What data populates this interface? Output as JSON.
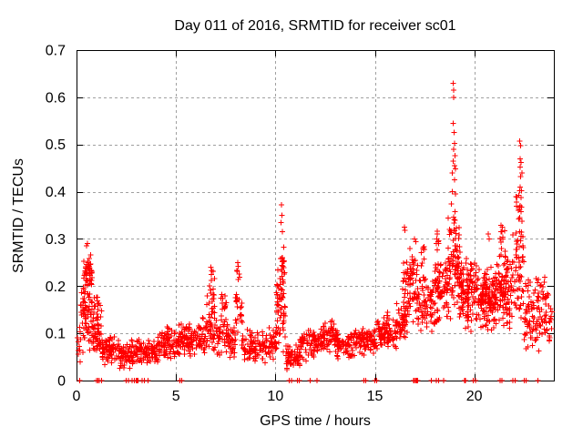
{
  "window": {
    "background": "#ffffff"
  },
  "chart_data": {
    "type": "scatter",
    "title": "Day 011 of 2016, SRMTID for receiver sc01",
    "xlabel": "GPS time / hours",
    "ylabel": "SRMTID / TECUs",
    "xlim": [
      0,
      24
    ],
    "ylim": [
      0,
      0.7
    ],
    "xtick_values": [
      0,
      5,
      10,
      15,
      20
    ],
    "xtick_labels": [
      "0",
      "5",
      "10",
      "15",
      "20"
    ],
    "ytick_values": [
      0,
      0.1,
      0.2,
      0.3,
      0.4,
      0.5,
      0.6,
      0.7
    ],
    "ytick_labels": [
      "0",
      "0.1",
      "0.2",
      "0.3",
      "0.4",
      "0.5",
      "0.6",
      "0.7"
    ],
    "grid": true,
    "grid_style": "dashed",
    "legend": "none",
    "series_name": "SRMTID",
    "marker": "plus",
    "marker_color": "#ff0000",
    "grid_color": "#a0a0a0",
    "axis_color": "#000000",
    "text_color": "#000000",
    "random_seed": 20160111,
    "band_envelope": {
      "columns": [
        "t_start_hours",
        "t_end_hours",
        "point_count",
        "y_min_tecu",
        "y_max_tecu"
      ],
      "rows": [
        [
          0.03,
          0.2,
          10,
          0.03,
          0.13
        ],
        [
          0.2,
          0.45,
          25,
          0.05,
          0.24
        ],
        [
          0.35,
          0.8,
          55,
          0.17,
          0.275
        ],
        [
          0.4,
          0.95,
          45,
          0.06,
          0.18
        ],
        [
          0.8,
          1.3,
          45,
          0.04,
          0.15
        ],
        [
          1.0,
          1.4,
          8,
          0.13,
          0.21
        ],
        [
          1.3,
          2.1,
          70,
          0.03,
          0.1
        ],
        [
          2.1,
          3.1,
          85,
          0.02,
          0.09
        ],
        [
          3.1,
          4.1,
          85,
          0.03,
          0.095
        ],
        [
          4.1,
          5.0,
          80,
          0.04,
          0.115
        ],
        [
          5.0,
          6.1,
          95,
          0.045,
          0.125
        ],
        [
          6.1,
          6.6,
          40,
          0.05,
          0.14
        ],
        [
          6.55,
          6.95,
          22,
          0.13,
          0.235
        ],
        [
          6.6,
          7.3,
          55,
          0.05,
          0.15
        ],
        [
          7.25,
          7.55,
          14,
          0.13,
          0.2
        ],
        [
          7.3,
          8.0,
          55,
          0.045,
          0.135
        ],
        [
          7.95,
          8.35,
          20,
          0.1,
          0.21
        ],
        [
          8.05,
          8.2,
          5,
          0.19,
          0.25
        ],
        [
          8.3,
          9.6,
          95,
          0.03,
          0.11
        ],
        [
          9.6,
          10.05,
          35,
          0.04,
          0.12
        ],
        [
          10.05,
          10.5,
          60,
          0.06,
          0.26
        ],
        [
          10.25,
          10.45,
          16,
          0.19,
          0.31
        ],
        [
          10.5,
          11.25,
          60,
          0.02,
          0.085
        ],
        [
          11.25,
          12.1,
          70,
          0.04,
          0.115
        ],
        [
          12.1,
          13.1,
          85,
          0.05,
          0.13
        ],
        [
          13.1,
          13.9,
          65,
          0.04,
          0.105
        ],
        [
          13.9,
          15.1,
          95,
          0.05,
          0.12
        ],
        [
          15.1,
          16.1,
          90,
          0.06,
          0.145
        ],
        [
          16.1,
          16.65,
          55,
          0.08,
          0.17
        ],
        [
          16.4,
          16.9,
          25,
          0.15,
          0.27
        ],
        [
          16.6,
          17.15,
          50,
          0.12,
          0.285
        ],
        [
          17.15,
          17.9,
          70,
          0.09,
          0.24
        ],
        [
          17.3,
          17.5,
          8,
          0.24,
          0.3
        ],
        [
          17.9,
          18.65,
          80,
          0.1,
          0.27
        ],
        [
          18.0,
          18.25,
          8,
          0.27,
          0.33
        ],
        [
          18.65,
          19.3,
          100,
          0.12,
          0.38
        ],
        [
          19.3,
          20.3,
          130,
          0.1,
          0.27
        ],
        [
          20.3,
          21.1,
          130,
          0.1,
          0.25
        ],
        [
          21.1,
          21.9,
          110,
          0.1,
          0.28
        ],
        [
          21.3,
          21.6,
          10,
          0.27,
          0.34
        ],
        [
          21.9,
          22.5,
          60,
          0.12,
          0.35
        ],
        [
          22.1,
          22.45,
          12,
          0.35,
          0.42
        ],
        [
          22.5,
          23.3,
          75,
          0.05,
          0.24
        ],
        [
          23.3,
          23.9,
          45,
          0.07,
          0.23
        ]
      ]
    },
    "notable_points": [
      [
        0.5,
        0.285
      ],
      [
        0.55,
        0.29
      ],
      [
        6.75,
        0.24
      ],
      [
        6.8,
        0.232
      ],
      [
        8.1,
        0.25
      ],
      [
        8.13,
        0.242
      ],
      [
        10.3,
        0.372
      ],
      [
        10.32,
        0.35
      ],
      [
        10.28,
        0.335
      ],
      [
        10.35,
        0.315
      ],
      [
        16.48,
        0.325
      ],
      [
        16.52,
        0.318
      ],
      [
        17.0,
        0.3
      ],
      [
        17.05,
        0.294
      ],
      [
        18.95,
        0.63
      ],
      [
        18.97,
        0.615
      ],
      [
        18.96,
        0.6
      ],
      [
        18.93,
        0.545
      ],
      [
        18.98,
        0.525
      ],
      [
        19.0,
        0.502
      ],
      [
        18.96,
        0.49
      ],
      [
        19.02,
        0.476
      ],
      [
        18.94,
        0.465
      ],
      [
        19.0,
        0.455
      ],
      [
        19.05,
        0.448
      ],
      [
        18.9,
        0.44
      ],
      [
        19.0,
        0.425
      ],
      [
        18.9,
        0.4
      ],
      [
        19.05,
        0.395
      ],
      [
        20.7,
        0.31
      ],
      [
        20.75,
        0.3
      ],
      [
        22.28,
        0.507
      ],
      [
        22.33,
        0.498
      ],
      [
        22.3,
        0.47
      ],
      [
        22.36,
        0.462
      ],
      [
        22.3,
        0.452
      ],
      [
        22.4,
        0.44
      ],
      [
        22.32,
        0.432
      ],
      [
        22.3,
        0.41
      ],
      [
        22.38,
        0.402
      ],
      [
        22.3,
        0.37
      ],
      [
        22.34,
        0.358
      ],
      [
        22.29,
        0.345
      ],
      [
        22.4,
        0.337
      ]
    ],
    "zero_value_times": [
      0.15,
      1.0,
      1.08,
      1.15,
      1.25,
      2.5,
      2.62,
      2.8,
      2.9,
      3.0,
      3.05,
      3.1,
      3.3,
      3.42,
      3.6,
      5.2,
      5.3,
      10.7,
      10.8,
      11.1,
      11.2,
      11.75,
      12.1,
      14.45,
      14.55,
      15.0,
      15.1,
      16.95,
      17.0,
      17.05,
      17.08,
      17.1,
      17.15,
      17.85,
      18.1,
      18.2,
      18.45,
      19.5,
      19.55,
      19.95,
      20.05,
      21.3,
      21.4,
      21.95,
      22.05,
      22.5,
      22.6,
      23.2
    ]
  }
}
